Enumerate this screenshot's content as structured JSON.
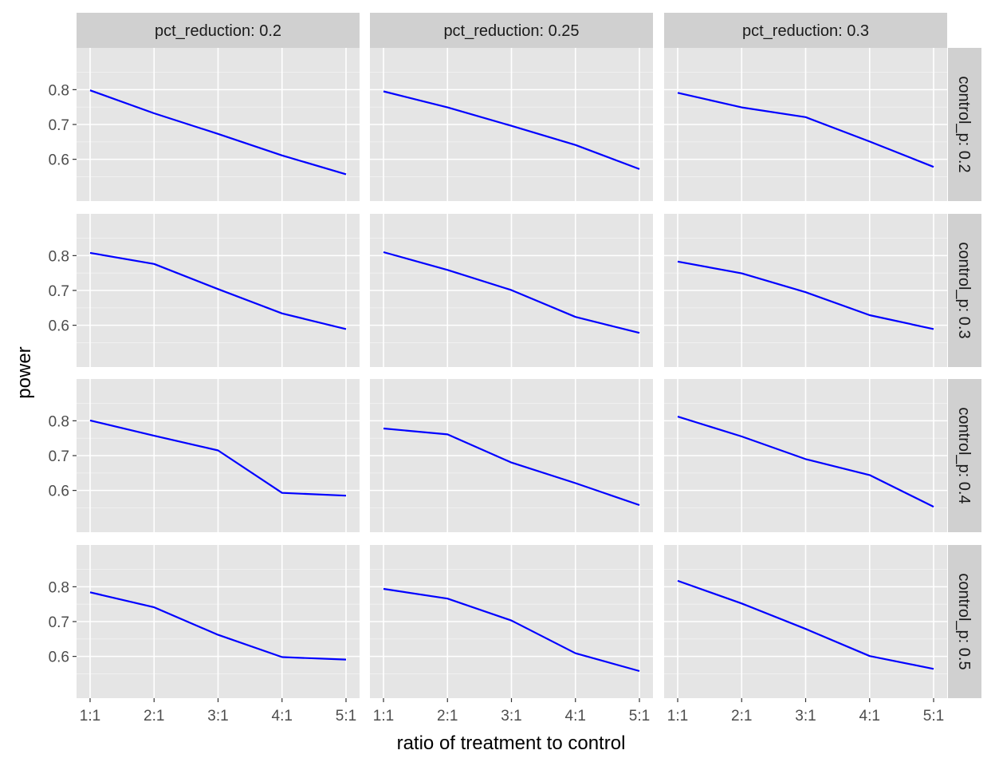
{
  "chart_data": {
    "type": "line",
    "layout": "facet_grid",
    "xlabel": "ratio of treatment to control",
    "ylabel": "power",
    "x": [
      "1:1",
      "2:1",
      "3:1",
      "4:1",
      "5:1"
    ],
    "y_ticks": [
      0.6,
      0.7,
      0.8
    ],
    "ylim": [
      0.48,
      0.92
    ],
    "grid": true,
    "line_color": "#0000ff",
    "panel_background": "#e5e5e5",
    "strip_background": "#d0d0d0",
    "col_facets": [
      "pct_reduction: 0.2",
      "pct_reduction: 0.25",
      "pct_reduction: 0.3"
    ],
    "row_facets": [
      "control_p: 0.2",
      "control_p: 0.3",
      "control_p: 0.4",
      "control_p: 0.5"
    ],
    "panels": [
      {
        "col": 0,
        "row": 0,
        "values": [
          0.798,
          0.732,
          0.673,
          0.611,
          0.557
        ]
      },
      {
        "col": 1,
        "row": 0,
        "values": [
          0.795,
          0.749,
          0.696,
          0.641,
          0.572
        ]
      },
      {
        "col": 2,
        "row": 0,
        "values": [
          0.791,
          0.749,
          0.721,
          0.651,
          0.578
        ]
      },
      {
        "col": 0,
        "row": 1,
        "values": [
          0.808,
          0.776,
          0.704,
          0.634,
          0.589
        ]
      },
      {
        "col": 1,
        "row": 1,
        "values": [
          0.81,
          0.759,
          0.701,
          0.624,
          0.578
        ]
      },
      {
        "col": 2,
        "row": 1,
        "values": [
          0.783,
          0.749,
          0.695,
          0.629,
          0.589
        ]
      },
      {
        "col": 0,
        "row": 2,
        "values": [
          0.801,
          0.757,
          0.715,
          0.593,
          0.585
        ]
      },
      {
        "col": 1,
        "row": 2,
        "values": [
          0.778,
          0.761,
          0.68,
          0.621,
          0.558
        ]
      },
      {
        "col": 2,
        "row": 2,
        "values": [
          0.812,
          0.755,
          0.69,
          0.644,
          0.553
        ]
      },
      {
        "col": 0,
        "row": 3,
        "values": [
          0.784,
          0.741,
          0.662,
          0.598,
          0.591
        ]
      },
      {
        "col": 1,
        "row": 3,
        "values": [
          0.794,
          0.766,
          0.703,
          0.609,
          0.558
        ]
      },
      {
        "col": 2,
        "row": 3,
        "values": [
          0.817,
          0.752,
          0.679,
          0.601,
          0.564
        ]
      }
    ]
  }
}
